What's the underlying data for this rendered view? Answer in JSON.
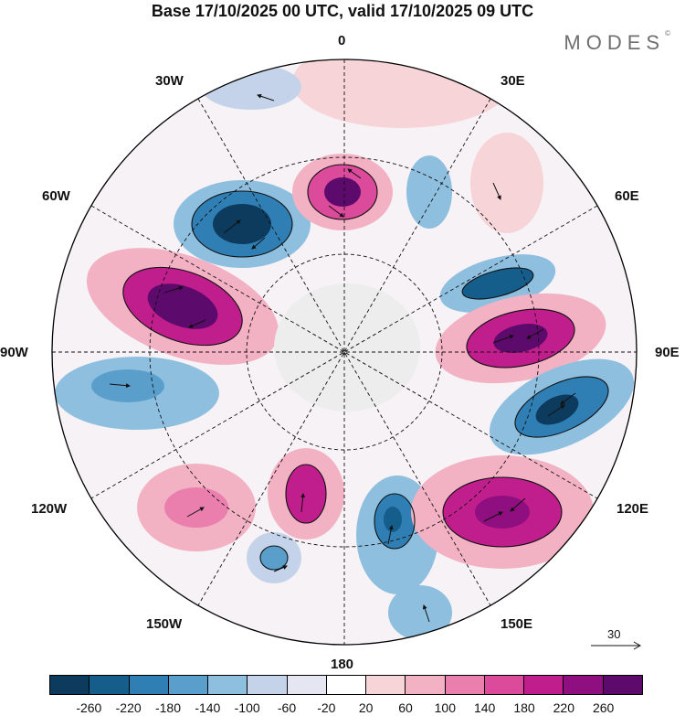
{
  "title": "Base 17/10/2025 00 UTC, valid 17/10/2025 09 UTC",
  "brand": "MODES",
  "brand_mark": "©",
  "longitude_labels": {
    "top": "0",
    "bottom": "180",
    "left": "90W",
    "right": "90E",
    "w30": "30W",
    "e30": "30E",
    "w60": "60W",
    "e60": "60E",
    "w120": "120W",
    "e120": "120E",
    "w150": "150W",
    "e150": "150E"
  },
  "reference_vector": "30",
  "colorbar": {
    "colors": [
      "#0d3b5e",
      "#155d8b",
      "#2f7fb5",
      "#5a9fcc",
      "#8fbfdf",
      "#c5d3ea",
      "#e6e6f2",
      "#ffffff",
      "#f7d4d8",
      "#f2b2c3",
      "#ea7fae",
      "#dc4a9c",
      "#c11e8d",
      "#8f0f80",
      "#5c0a6b"
    ],
    "labels": [
      "-260",
      "-220",
      "-180",
      "-140",
      "-100",
      "-60",
      "-20",
      "20",
      "60",
      "100",
      "140",
      "180",
      "220",
      "260"
    ]
  }
}
